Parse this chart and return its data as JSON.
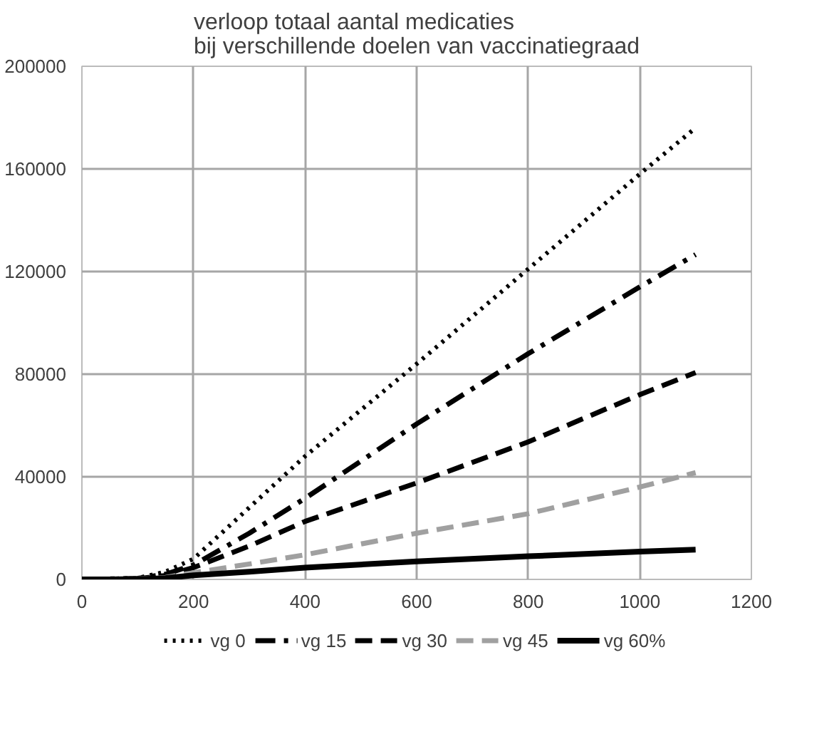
{
  "chart_data": {
    "type": "line",
    "title": "verloop totaal aantal medicaties\nbij verschillende doelen van vaccinatiegraad",
    "xlim": [
      0,
      1200
    ],
    "xticks": [
      0,
      200,
      400,
      600,
      800,
      1000,
      1200
    ],
    "ylim": [
      0,
      200000
    ],
    "yticks": [
      0,
      40000,
      80000,
      120000,
      160000,
      200000
    ],
    "grid": true,
    "legend": "bottom",
    "x": [
      0,
      100,
      150,
      200,
      300,
      400,
      600,
      800,
      1000,
      1100
    ],
    "series": [
      {
        "name": "vg 0",
        "color": "#000000",
        "line_style": "dotted",
        "values": [
          0,
          500,
          3000,
          8000,
          28000,
          48000,
          84000,
          121000,
          158000,
          176000
        ]
      },
      {
        "name": "vg 15",
        "color": "#000000",
        "line_style": "dashdot",
        "values": [
          0,
          400,
          2000,
          5600,
          18000,
          31600,
          60600,
          88000,
          114000,
          126600
        ]
      },
      {
        "name": "vg 30",
        "color": "#000000",
        "line_style": "dashed",
        "values": [
          0,
          300,
          1500,
          4600,
          13000,
          22600,
          37600,
          53600,
          72000,
          80600
        ]
      },
      {
        "name": "vg 45",
        "color": "#a0a0a0",
        "line_style": "dashed",
        "values": [
          0,
          200,
          800,
          2600,
          6000,
          9600,
          18000,
          25600,
          36000,
          41600
        ]
      },
      {
        "name": "vg 60%",
        "color": "#000000",
        "line_style": "solid",
        "values": [
          0,
          100,
          500,
          1600,
          3000,
          4600,
          7000,
          9000,
          10800,
          11600
        ]
      }
    ]
  }
}
